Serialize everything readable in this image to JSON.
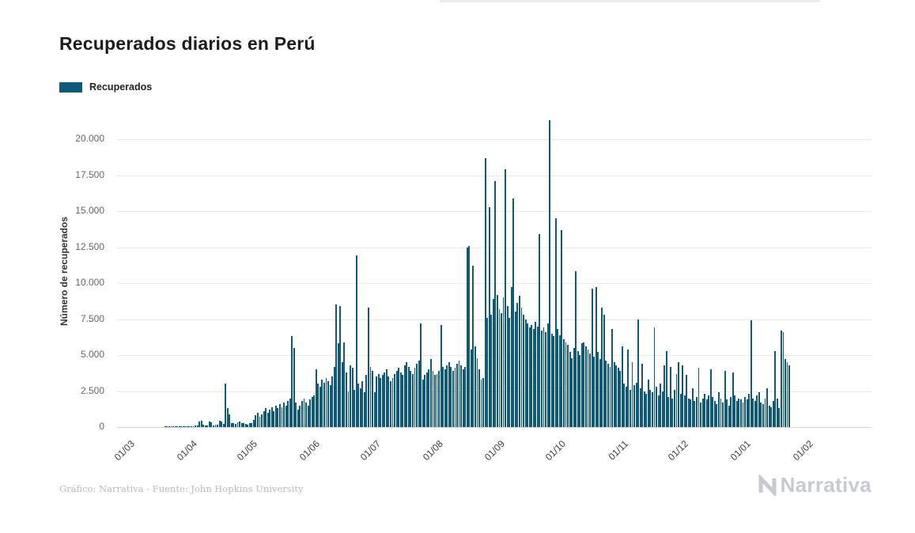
{
  "page": {
    "title": "Recuperados diarios en Perú",
    "legend_label": "Recuperados",
    "footer_credit": "Gráfico: Narrativa - Fuente: John Hopkins University",
    "brand_name": "Narrativa"
  },
  "chart_data": {
    "type": "bar",
    "title": "Recuperados diarios en Perú",
    "series_name": "Recuperados",
    "xlabel": "",
    "ylabel": "Número de recuperados",
    "bar_color": "#0e5a78",
    "background": "#ffffff",
    "grid": true,
    "legend_position": "top-left",
    "ylim": [
      0,
      21500
    ],
    "yticks": [
      0,
      2500,
      5000,
      7500,
      10000,
      12500,
      15000,
      17500,
      20000
    ],
    "ytick_labels": [
      "0",
      "2.500",
      "5.000",
      "7.500",
      "10.000",
      "12.500",
      "15.000",
      "17.500",
      "20.000"
    ],
    "xtick_labels": [
      "01/03",
      "01/04",
      "01/05",
      "01/06",
      "01/07",
      "01/08",
      "01/09",
      "01/10",
      "01/11",
      "01/12",
      "01/01",
      "01/02"
    ],
    "xticks_day_index": [
      0,
      31,
      61,
      92,
      122,
      153,
      184,
      214,
      245,
      275,
      306,
      337
    ],
    "x_start": "01/03 (2020)",
    "x_end": "23/01 (2021)",
    "values_by_month": [
      {
        "month": "2020-03",
        "values": [
          0,
          0,
          0,
          0,
          0,
          0,
          0,
          0,
          0,
          0,
          0,
          0,
          0,
          0,
          0,
          0,
          0,
          0,
          2,
          3,
          4,
          5,
          6,
          8,
          10,
          12,
          15,
          18,
          20,
          25,
          30
        ]
      },
      {
        "month": "2020-04",
        "values": [
          40,
          60,
          90,
          120,
          380,
          420,
          150,
          90,
          110,
          400,
          350,
          120,
          140,
          160,
          420,
          380,
          200,
          3000,
          1300,
          900,
          250,
          300,
          200,
          350,
          400,
          300,
          250,
          200,
          150,
          250
        ]
      },
      {
        "month": "2020-05",
        "values": [
          300,
          500,
          800,
          1000,
          700,
          900,
          1100,
          1300,
          1000,
          1200,
          1400,
          1100,
          1500,
          1300,
          1600,
          1400,
          1700,
          1500,
          1800,
          2000,
          6300,
          5500,
          1700,
          1200,
          1500,
          1800,
          2000,
          1700,
          1500,
          1900,
          2100
        ]
      },
      {
        "month": "2020-06",
        "values": [
          2200,
          4000,
          3000,
          2800,
          3300,
          3100,
          3400,
          3200,
          2900,
          3500,
          4200,
          8500,
          5800,
          8400,
          4500,
          5900,
          3800,
          2500,
          4300,
          4100,
          2600,
          11900,
          3000,
          2700,
          3200,
          2400,
          3600,
          8300,
          4200,
          3900
        ]
      },
      {
        "month": "2020-07",
        "values": [
          2400,
          3500,
          3700,
          3400,
          3600,
          3800,
          4000,
          3500,
          3200,
          3400,
          3700,
          3900,
          4100,
          3800,
          3600,
          4300,
          4500,
          4200,
          3900,
          3700,
          4100,
          4400,
          4600,
          7200,
          3300,
          3600,
          3800,
          4000,
          4700,
          3900,
          3600
        ]
      },
      {
        "month": "2020-08",
        "values": [
          3700,
          3900,
          7100,
          4200,
          4000,
          4300,
          4500,
          4200,
          3900,
          4100,
          4400,
          4600,
          4300,
          4000,
          4200,
          12500,
          12600,
          5400,
          11200,
          5600,
          4800,
          4000,
          3300,
          3400,
          18700,
          7600,
          15300,
          7800,
          8900,
          17100,
          9200
        ]
      },
      {
        "month": "2020-09",
        "values": [
          8200,
          7900,
          9000,
          17900,
          8400,
          7600,
          9700,
          15900,
          8000,
          8600,
          9100,
          8300,
          7800,
          7500,
          7200,
          6900,
          7100,
          6800,
          7300,
          7000,
          13400,
          6700,
          6900,
          6600,
          7200,
          21300,
          6500,
          6300,
          14500,
          6800
        ]
      },
      {
        "month": "2020-10",
        "values": [
          6400,
          13700,
          6100,
          5900,
          5700,
          5200,
          4800,
          5500,
          10800,
          5300,
          5000,
          5800,
          5900,
          5600,
          5400,
          5100,
          9600,
          4900,
          9700,
          5200,
          4700,
          8300,
          7800,
          4600,
          4400,
          4200,
          6800,
          4500,
          4300,
          4100,
          3900
        ]
      },
      {
        "month": "2020-11",
        "values": [
          5600,
          3000,
          2800,
          5400,
          2600,
          4500,
          2900,
          3100,
          7500,
          2700,
          4400,
          2500,
          2300,
          3300,
          2600,
          2400,
          6900,
          2800,
          2200,
          3000,
          2500,
          4300,
          5300,
          2100,
          4200,
          2000,
          2600,
          3700,
          4500,
          2300
        ]
      },
      {
        "month": "2020-12",
        "values": [
          4300,
          2200,
          3600,
          2000,
          1900,
          2700,
          1800,
          2100,
          4100,
          1700,
          2000,
          2300,
          1900,
          2200,
          4000,
          2100,
          1800,
          1600,
          2400,
          2000,
          1700,
          3900,
          1900,
          1500,
          2100,
          3800,
          2200,
          1800,
          2000,
          1900,
          1700
        ]
      },
      {
        "month": "2021-01",
        "values": [
          2100,
          1900,
          2300,
          7400,
          2000,
          1800,
          2200,
          2400,
          1700,
          1600,
          2000,
          2700,
          1500,
          1400,
          1800,
          5300,
          2000,
          1300,
          6700,
          6600,
          4700,
          4500,
          4300
        ]
      }
    ]
  }
}
